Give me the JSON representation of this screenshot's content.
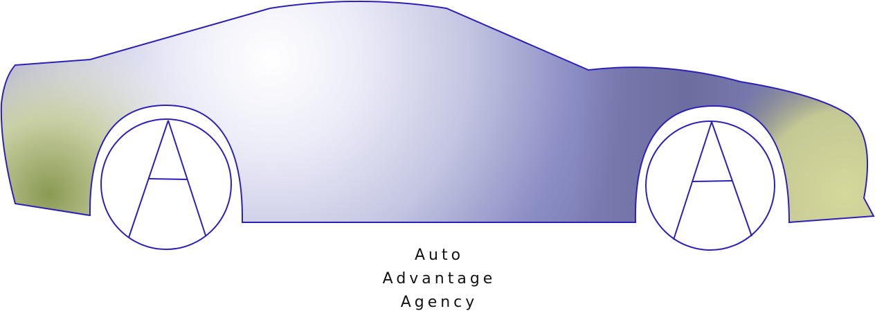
{
  "logo": {
    "line1": "Auto",
    "line2": "Advantage",
    "line3": "Agency",
    "wheel_letter": "A",
    "colors": {
      "outline": "#2b1fb8",
      "body_highlight": "#ffffff",
      "body_light": "#e6e6f6",
      "body_blue": "#8a8cc4",
      "body_dark": "#6a6c9c",
      "olive_dark": "#8a9a52",
      "olive_light": "#d6d89a",
      "cream": "#f6f6e6",
      "text": "#111111"
    }
  }
}
